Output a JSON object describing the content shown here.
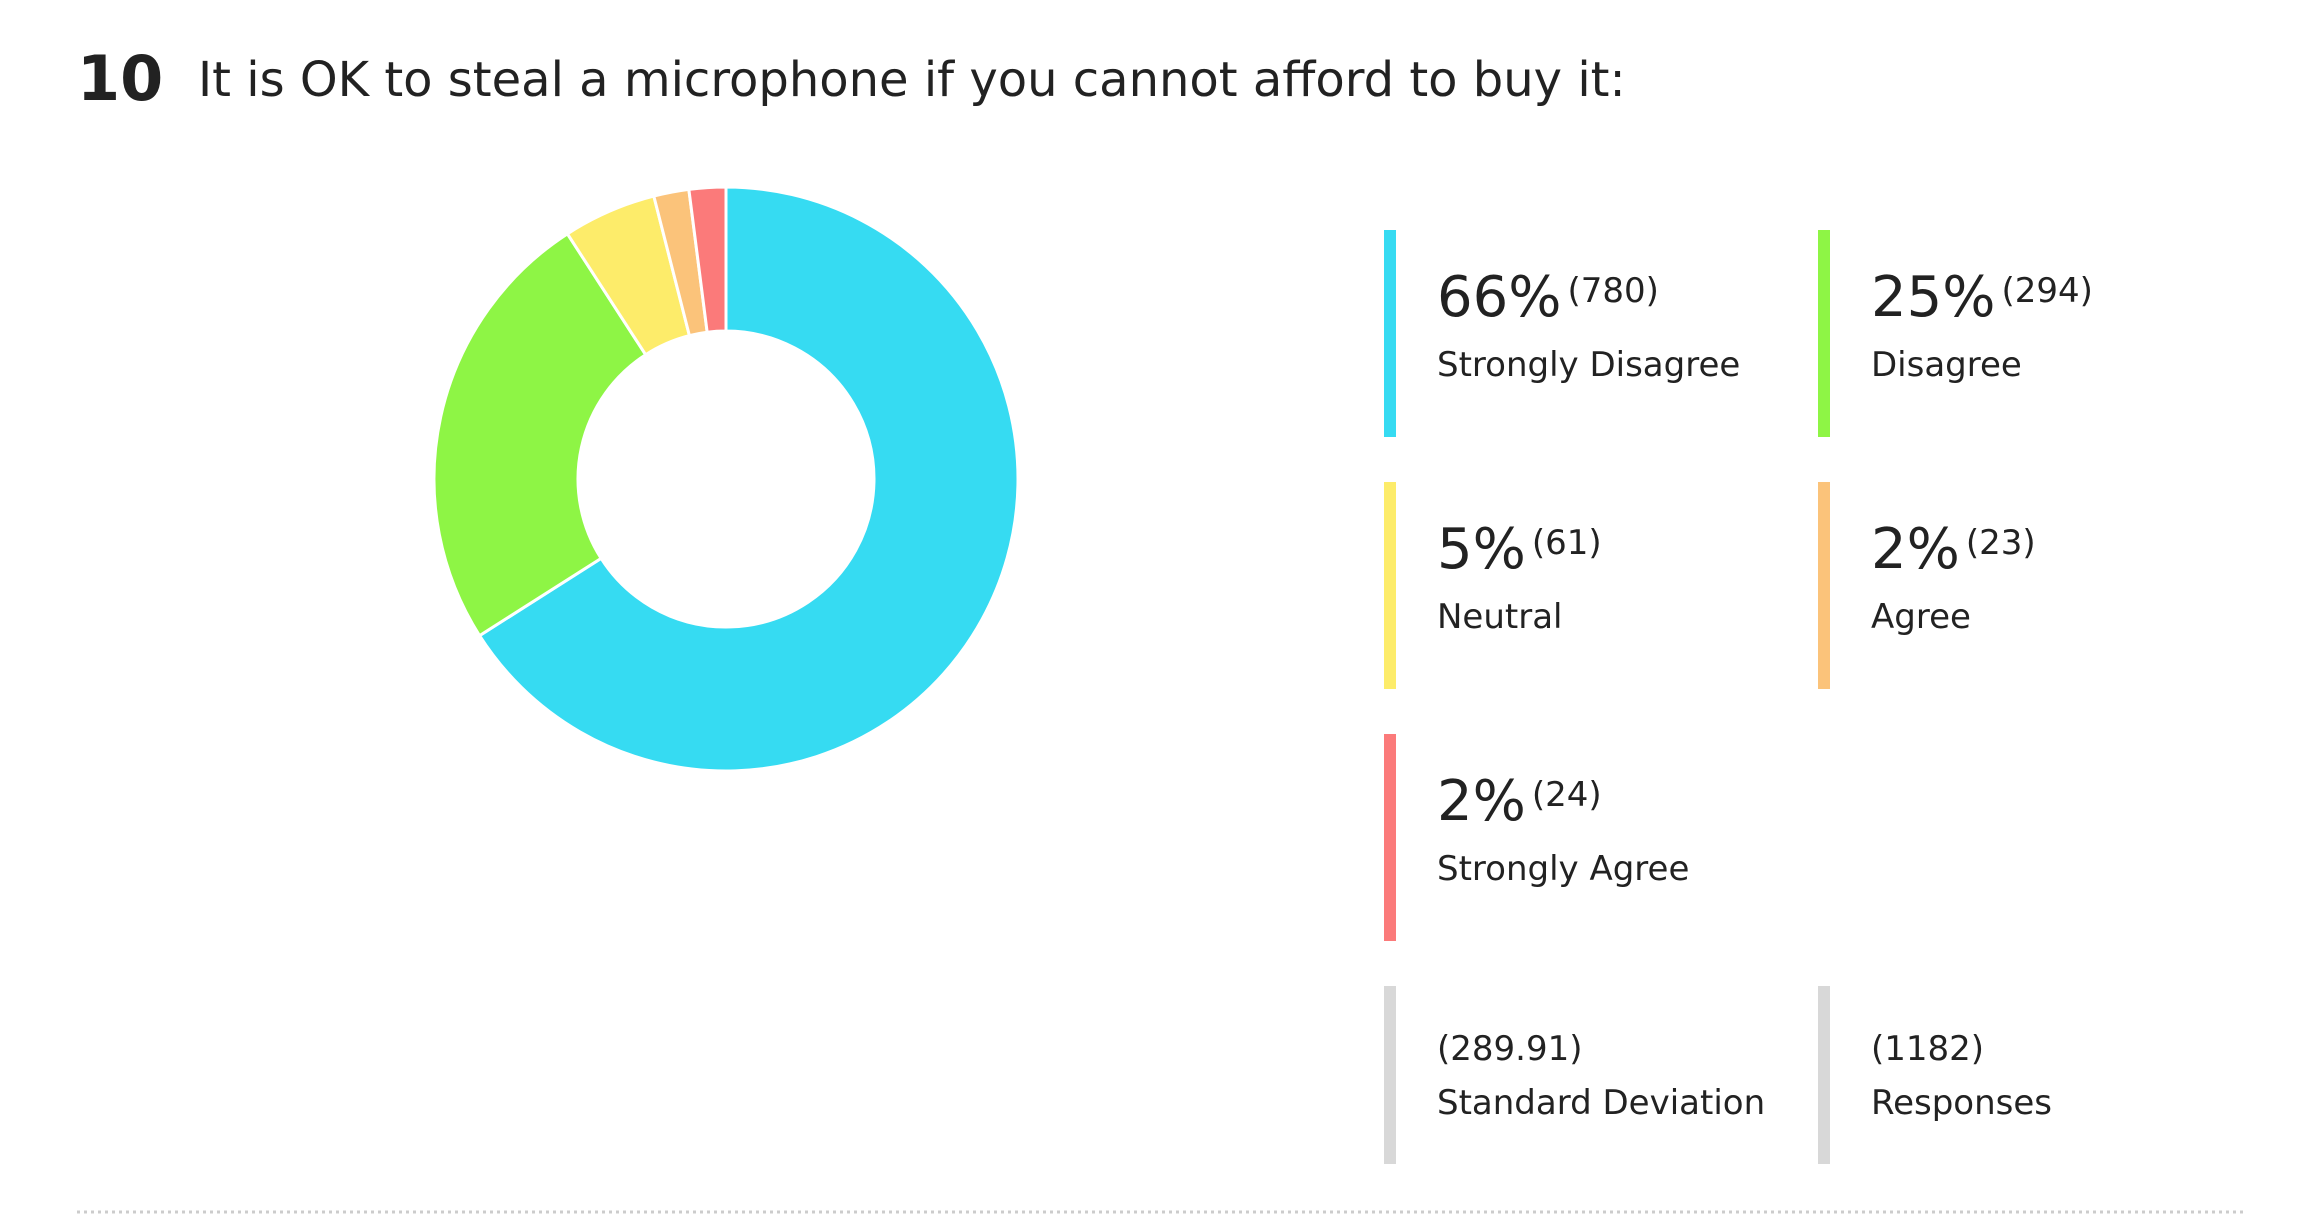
{
  "chart_data": {
    "type": "donut",
    "number": "10",
    "title": "It is OK to steal a microphone if you cannot afford to buy it:",
    "series": [
      {
        "name": "Strongly Disagree",
        "color": "#36dbf2",
        "values": [
          780
        ],
        "value_labels": [
          "(780)"
        ],
        "percent_labels": [
          "66%"
        ]
      },
      {
        "name": "Disagree",
        "color": "#8ef545",
        "values": [
          294
        ],
        "value_labels": [
          "(294)"
        ],
        "percent_labels": [
          "25%"
        ]
      },
      {
        "name": "Neutral",
        "color": "#fdec6a",
        "values": [
          61
        ],
        "value_labels": [
          "(61)"
        ],
        "percent_labels": [
          "5%"
        ]
      },
      {
        "name": "Agree",
        "color": "#fbc37a",
        "values": [
          23
        ],
        "value_labels": [
          "(23)"
        ],
        "percent_labels": [
          "2%"
        ]
      },
      {
        "name": "Strongly Agree",
        "color": "#fb7a7a",
        "values": [
          24
        ],
        "value_labels": [
          "(24)"
        ],
        "percent_labels": [
          "2%"
        ]
      }
    ],
    "stats": [
      {
        "name": "Standard Deviation",
        "value_label": "(289.91)"
      },
      {
        "name": "Responses",
        "value_label": "(1182)"
      }
    ]
  }
}
